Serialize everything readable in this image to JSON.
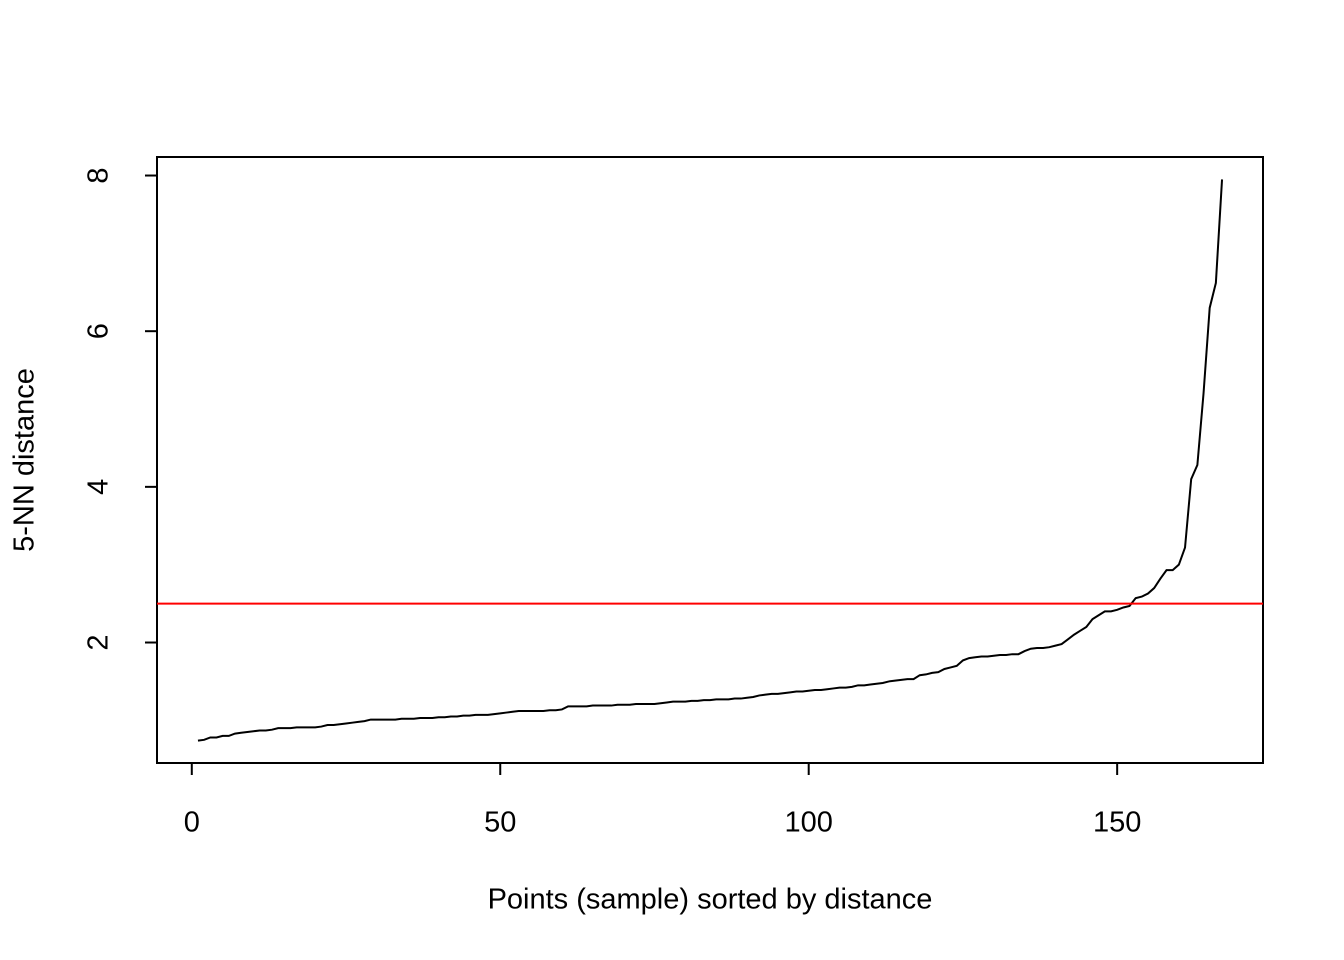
{
  "chart_data": {
    "type": "line",
    "xlabel": "Points (sample) sorted by distance",
    "ylabel": "5-NN distance",
    "x": [
      1,
      2,
      3,
      4,
      5,
      6,
      7,
      8,
      9,
      10,
      11,
      12,
      13,
      14,
      15,
      16,
      17,
      18,
      19,
      20,
      21,
      22,
      23,
      24,
      25,
      26,
      27,
      28,
      29,
      30,
      31,
      32,
      33,
      34,
      35,
      36,
      37,
      38,
      39,
      40,
      41,
      42,
      43,
      44,
      45,
      46,
      47,
      48,
      49,
      50,
      51,
      52,
      53,
      54,
      55,
      56,
      57,
      58,
      59,
      60,
      61,
      62,
      63,
      64,
      65,
      66,
      67,
      68,
      69,
      70,
      71,
      72,
      73,
      74,
      75,
      76,
      77,
      78,
      79,
      80,
      81,
      82,
      83,
      84,
      85,
      86,
      87,
      88,
      89,
      90,
      91,
      92,
      93,
      94,
      95,
      96,
      97,
      98,
      99,
      100,
      101,
      102,
      103,
      104,
      105,
      106,
      107,
      108,
      109,
      110,
      111,
      112,
      113,
      114,
      115,
      116,
      117,
      118,
      119,
      120,
      121,
      122,
      123,
      124,
      125,
      126,
      127,
      128,
      129,
      130,
      131,
      132,
      133,
      134,
      135,
      136,
      137,
      138,
      139,
      140,
      141,
      142,
      143,
      144,
      145,
      146,
      147,
      148,
      149,
      150,
      151,
      152,
      153,
      154,
      155,
      156,
      157,
      158,
      159,
      160,
      161,
      162,
      163,
      164,
      165,
      166,
      167
    ],
    "series": [
      {
        "color": "#000000",
        "values": [
          0.74,
          0.75,
          0.78,
          0.78,
          0.8,
          0.8,
          0.83,
          0.84,
          0.85,
          0.86,
          0.87,
          0.87,
          0.88,
          0.9,
          0.9,
          0.9,
          0.91,
          0.91,
          0.91,
          0.91,
          0.92,
          0.94,
          0.94,
          0.95,
          0.96,
          0.97,
          0.98,
          0.99,
          1.01,
          1.01,
          1.01,
          1.01,
          1.01,
          1.02,
          1.02,
          1.02,
          1.03,
          1.03,
          1.03,
          1.04,
          1.04,
          1.05,
          1.05,
          1.06,
          1.06,
          1.07,
          1.07,
          1.07,
          1.08,
          1.09,
          1.1,
          1.11,
          1.12,
          1.12,
          1.12,
          1.12,
          1.12,
          1.13,
          1.13,
          1.14,
          1.18,
          1.18,
          1.18,
          1.18,
          1.19,
          1.19,
          1.19,
          1.19,
          1.2,
          1.2,
          1.2,
          1.21,
          1.21,
          1.21,
          1.21,
          1.22,
          1.23,
          1.24,
          1.24,
          1.24,
          1.25,
          1.25,
          1.26,
          1.26,
          1.27,
          1.27,
          1.27,
          1.28,
          1.28,
          1.29,
          1.3,
          1.32,
          1.33,
          1.34,
          1.34,
          1.35,
          1.36,
          1.37,
          1.37,
          1.38,
          1.39,
          1.39,
          1.4,
          1.41,
          1.42,
          1.42,
          1.43,
          1.45,
          1.45,
          1.46,
          1.47,
          1.48,
          1.5,
          1.51,
          1.52,
          1.53,
          1.53,
          1.58,
          1.59,
          1.61,
          1.62,
          1.66,
          1.68,
          1.7,
          1.77,
          1.8,
          1.81,
          1.82,
          1.82,
          1.83,
          1.84,
          1.84,
          1.85,
          1.85,
          1.89,
          1.92,
          1.93,
          1.93,
          1.94,
          1.96,
          1.98,
          2.04,
          2.1,
          2.15,
          2.2,
          2.3,
          2.35,
          2.4,
          2.4,
          2.42,
          2.45,
          2.47,
          2.57,
          2.59,
          2.63,
          2.7,
          2.82,
          2.93,
          2.93,
          3.0,
          3.22,
          4.1,
          4.28,
          5.2,
          6.3,
          6.62,
          7.95
        ]
      }
    ],
    "hline": {
      "value": 2.5,
      "color": "#ff0000"
    },
    "xlim": [
      -5.64,
      173.64
    ],
    "xticks": [
      0,
      50,
      100,
      150
    ],
    "ylim": [
      0.452,
      8.238
    ],
    "yticks": [
      2,
      4,
      6,
      8
    ]
  }
}
